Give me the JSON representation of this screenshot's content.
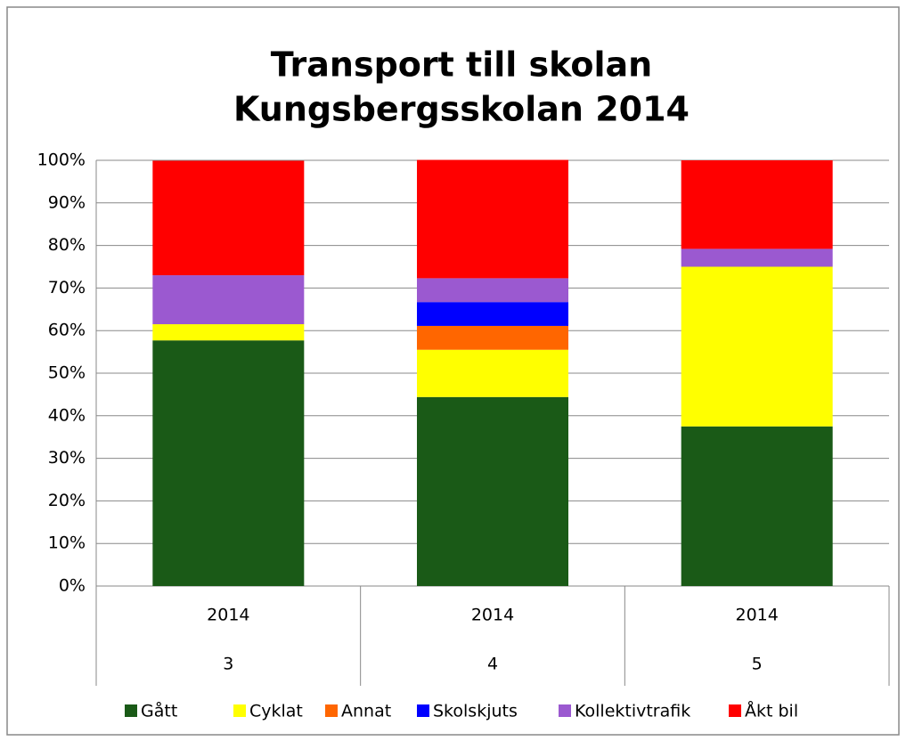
{
  "chart_data": {
    "type": "stacked_bar_percent",
    "title": [
      "Transport till skolan",
      "Kungsbergsskolan 2014"
    ],
    "categories": [
      "3",
      "4",
      "5"
    ],
    "category_groups": [
      "2014",
      "2014",
      "2014"
    ],
    "series": [
      {
        "name": "Gått",
        "color": "#1a5a17",
        "values": [
          57.7,
          44.4,
          37.5
        ]
      },
      {
        "name": "Cyklat",
        "color": "#ffff00",
        "values": [
          3.8,
          11.1,
          37.5
        ]
      },
      {
        "name": "Annat",
        "color": "#ff6600",
        "values": [
          0,
          5.6,
          0
        ]
      },
      {
        "name": "Skolskjuts",
        "color": "#0000ff",
        "values": [
          0,
          5.6,
          0
        ]
      },
      {
        "name": "Kollektivtrafik",
        "color": "#9b59d0",
        "values": [
          11.5,
          5.6,
          4.2
        ]
      },
      {
        "name": "Åkt bil",
        "color": "#ff0000",
        "values": [
          26.9,
          27.8,
          20.8
        ]
      }
    ],
    "ylim": [
      0,
      100
    ],
    "yticks": [
      {
        "value": 0,
        "label": "0%"
      },
      {
        "value": 10,
        "label": "10%"
      },
      {
        "value": 20,
        "label": "20%"
      },
      {
        "value": 30,
        "label": "30%"
      },
      {
        "value": 40,
        "label": "40%"
      },
      {
        "value": 50,
        "label": "50%"
      },
      {
        "value": 60,
        "label": "60%"
      },
      {
        "value": 70,
        "label": "70%"
      },
      {
        "value": 80,
        "label": "80%"
      },
      {
        "value": 90,
        "label": "90%"
      },
      {
        "value": 100,
        "label": "100%"
      }
    ],
    "grid": true,
    "legend": "bottom"
  }
}
